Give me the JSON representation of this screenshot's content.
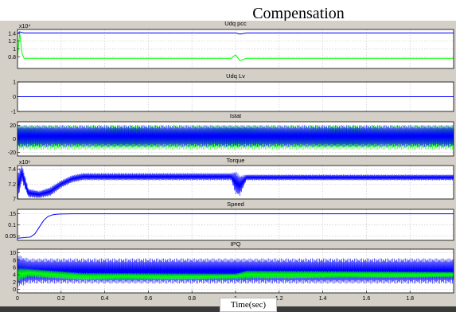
{
  "page_title": "Compensation",
  "colors": {
    "scope_bg": "#d4d0c8",
    "axes_bg": "#ffffff",
    "grid": "#c8c8c8",
    "blue": "#0000ff",
    "green": "#00ff00",
    "frame": "#000000",
    "footer": "#3a3a3a"
  },
  "chart_data": [
    {
      "type": "line",
      "title": "Udq pcc",
      "exponent": "x10⁴",
      "ylim": [
        0.5,
        1.5
      ],
      "yticks": [
        "1.4",
        "1.2",
        "1",
        "0.8"
      ],
      "ytick_values": [
        1.4,
        1.2,
        1.0,
        0.8
      ],
      "grid": true,
      "series": [
        {
          "color": "#0000ff",
          "style": "flat",
          "x": [
            0,
            0.01,
            0.02,
            0.03,
            1.0,
            1.02,
            1.05,
            2.0
          ],
          "values": [
            1.38,
            1.44,
            1.42,
            1.41,
            1.41,
            1.38,
            1.41,
            1.41
          ]
        },
        {
          "color": "#00ff00",
          "style": "flat",
          "x": [
            0,
            0.01,
            0.02,
            0.03,
            0.98,
            1.0,
            1.02,
            1.05,
            2.0
          ],
          "values": [
            0.76,
            1.42,
            0.9,
            0.76,
            0.76,
            0.85,
            0.7,
            0.76,
            0.76
          ]
        }
      ]
    },
    {
      "type": "line",
      "title": "Udq Lv",
      "exponent": "",
      "ylim": [
        -1,
        1
      ],
      "yticks": [
        "1",
        "0",
        "-1"
      ],
      "ytick_values": [
        1,
        0,
        -1
      ],
      "grid": true,
      "series": [
        {
          "color": "#0000ff",
          "style": "flat",
          "x": [
            0,
            2.0
          ],
          "values": [
            0,
            0
          ]
        }
      ]
    },
    {
      "type": "line",
      "title": "Istat",
      "exponent": "",
      "ylim": [
        -25,
        25
      ],
      "yticks": [
        "20",
        "0",
        "-20"
      ],
      "ytick_values": [
        20,
        0,
        -20
      ],
      "grid": true,
      "series": [
        {
          "color": "#00ff00",
          "style": "osc",
          "x": [
            0,
            2.0
          ],
          "values": [
            2,
            2
          ],
          "amp": [
            18,
            18
          ]
        },
        {
          "color": "#0000ff",
          "style": "osc",
          "x": [
            0,
            2.0
          ],
          "values": [
            4,
            4
          ],
          "amp": [
            16,
            16
          ]
        }
      ]
    },
    {
      "type": "line",
      "title": "Torque",
      "exponent": "x10⁶",
      "ylim": [
        7.0,
        7.45
      ],
      "yticks": [
        "7.4",
        "7.2",
        "7"
      ],
      "ytick_values": [
        7.4,
        7.2,
        7.0
      ],
      "grid": true,
      "series": [
        {
          "color": "#0000ff",
          "style": "osc",
          "x": [
            0,
            0.02,
            0.05,
            0.1,
            0.15,
            0.2,
            0.25,
            0.3,
            0.98,
            1.0,
            1.02,
            1.05,
            2.0
          ],
          "values": [
            7.15,
            7.35,
            7.08,
            7.06,
            7.1,
            7.2,
            7.27,
            7.3,
            7.3,
            7.22,
            7.18,
            7.29,
            7.29
          ],
          "amp": [
            0.2,
            0.12,
            0.06,
            0.05,
            0.06,
            0.05,
            0.05,
            0.05,
            0.05,
            0.16,
            0.14,
            0.04,
            0.04
          ]
        }
      ]
    },
    {
      "type": "line",
      "title": "Speed",
      "exponent": "",
      "ylim": [
        0.03,
        0.17
      ],
      "yticks": [
        ".15",
        "0.1",
        "0.05"
      ],
      "ytick_values": [
        0.15,
        0.1,
        0.05
      ],
      "grid": true,
      "series": [
        {
          "color": "#0000ff",
          "style": "flat",
          "x": [
            0,
            0.06,
            0.08,
            0.1,
            0.12,
            0.14,
            0.16,
            0.18,
            0.2,
            0.25,
            2.0
          ],
          "values": [
            0.04,
            0.045,
            0.06,
            0.09,
            0.12,
            0.138,
            0.145,
            0.148,
            0.149,
            0.15,
            0.15
          ]
        }
      ]
    },
    {
      "type": "line",
      "title": "IPQ",
      "exponent": "",
      "ylim": [
        -1,
        11
      ],
      "yticks": [
        "10",
        "8",
        "6",
        "4",
        "2",
        "0"
      ],
      "ytick_values": [
        10,
        8,
        6,
        4,
        2,
        0
      ],
      "grid": true,
      "series": [
        {
          "color": "#0000ff",
          "style": "osc",
          "x": [
            0,
            0.05,
            0.2,
            2.0
          ],
          "values": [
            5,
            5,
            5,
            5
          ],
          "amp": [
            4.5,
            3.5,
            3.5,
            3.5
          ]
        },
        {
          "color": "#00ff00",
          "style": "osc",
          "x": [
            0,
            0.05,
            0.3,
            1.0,
            1.05,
            2.0
          ],
          "values": [
            4,
            4.5,
            3.5,
            3.5,
            4,
            4
          ],
          "amp": [
            2,
            1.2,
            1,
            0.8,
            1.2,
            0.8
          ]
        }
      ]
    }
  ],
  "x_axis": {
    "label": "Time(sec)",
    "xlim": [
      0,
      2
    ],
    "ticks": [
      0,
      0.2,
      0.4,
      0.6,
      0.8,
      1,
      1.2,
      1.4,
      1.6,
      1.8
    ],
    "tick_labels": [
      "0",
      "0.2",
      "0.4",
      "0.6",
      "0.8",
      "1",
      "1.2",
      "1.4",
      "1.6",
      "1.8"
    ]
  }
}
